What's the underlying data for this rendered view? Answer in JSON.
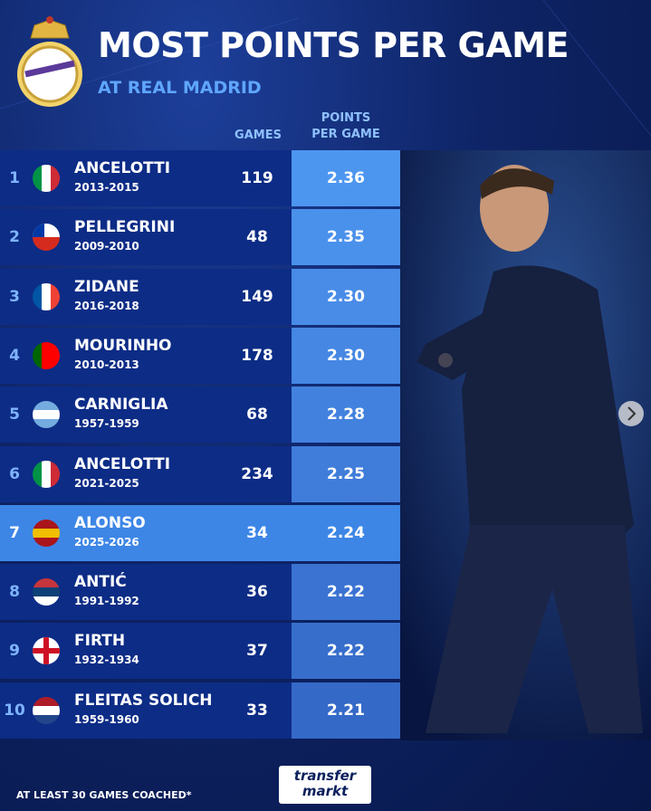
{
  "header": {
    "title": "MOST POINTS PER GAME",
    "subtitle": "AT REAL MADRID"
  },
  "table": {
    "columns": [
      "GAMES",
      "POINTS PER GAME"
    ],
    "rows": [
      {
        "rank": 1,
        "name": "ANCELOTTI",
        "years": "2013-2015",
        "games": 119,
        "ppg": "2.36"
      },
      {
        "rank": 2,
        "name": "PELLEGRINI",
        "years": "2009-2010",
        "games": 48,
        "ppg": "2.35"
      },
      {
        "rank": 3,
        "name": "ZIDANE",
        "years": "2016-2018",
        "games": 149,
        "ppg": "2.30"
      },
      {
        "rank": 4,
        "name": "MOURINHO",
        "years": "2010-2013",
        "games": 178,
        "ppg": "2.30"
      },
      {
        "rank": 5,
        "name": "CARNIGLIA",
        "years": "1957-1959",
        "games": 68,
        "ppg": "2.28"
      },
      {
        "rank": 6,
        "name": "ANCELOTTI",
        "years": "2021-2025",
        "games": 234,
        "ppg": "2.25"
      },
      {
        "rank": 7,
        "name": "ALONSO",
        "years": "2025-2026",
        "games": 34,
        "ppg": "2.24"
      },
      {
        "rank": 8,
        "name": "ANTIĆ",
        "years": "1991-1992",
        "games": 36,
        "ppg": "2.22"
      },
      {
        "rank": 9,
        "name": "FIRTH",
        "years": "1932-1934",
        "games": 37,
        "ppg": "2.22"
      },
      {
        "rank": 10,
        "name": "FLEITAS SOLICH",
        "years": "1959-1960",
        "games": 33,
        "ppg": "2.21"
      }
    ]
  },
  "footer": {
    "note": "AT LEAST 30 GAMES COACHED*",
    "logo": "transfer markt"
  }
}
